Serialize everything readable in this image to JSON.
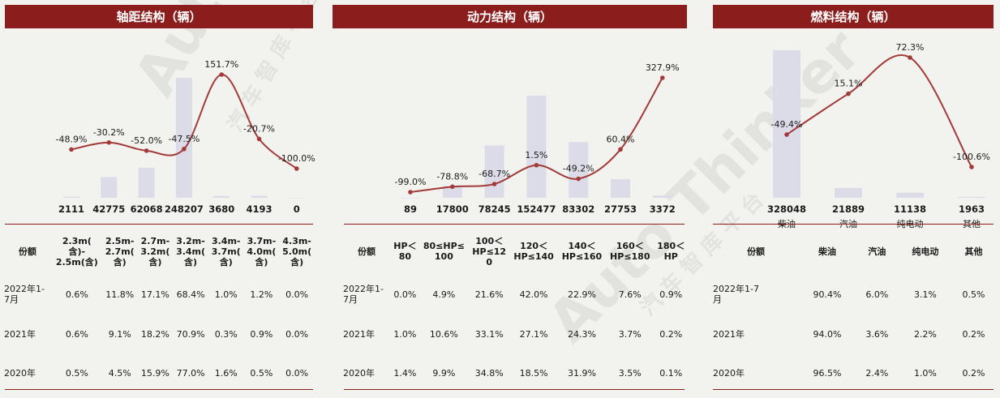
{
  "watermark": {
    "brand": "Auto Thinker",
    "cn1": "汽 车 智 库 平 台"
  },
  "colors": {
    "header": "#8c1d1d",
    "line": "#a33a3a",
    "bar": "#dcdce8"
  },
  "panels": [
    {
      "title": "轴距结构（辆）",
      "chart_data": {
        "type": "bar",
        "title": "轴距结构（辆）",
        "categories": [
          "2.3m(含)-2.5m(含)",
          "2.5m-2.7m(含)",
          "2.7m-3.2m(含)",
          "3.2m-3.4m(含)",
          "3.4m-3.7m(含)",
          "3.7m-4.0m(含)",
          "4.3m-5.0m(含)"
        ],
        "values": [
          2111,
          42775,
          62068,
          248207,
          3680,
          4193,
          0
        ],
        "value_labels": [
          "2111",
          "42775",
          "62068",
          "248207",
          "3680",
          "4193",
          "0"
        ],
        "growth": [
          -48.9,
          -30.2,
          -52.0,
          -47.5,
          151.7,
          -20.7,
          -100.0
        ],
        "growth_labels": [
          "-48.9%",
          "-30.2%",
          "-52.0%",
          "-47.5%",
          "151.7%",
          "-20.7%",
          "-100.0%"
        ]
      },
      "table": {
        "header": [
          "份额",
          "2.3m(\n含)-\n2.5m(含)",
          "2.5m-\n2.7m(\n含)",
          "2.7m-\n3.2m(\n含)",
          "3.2m-\n3.4m(\n含)",
          "3.4m-\n3.7m(\n含)",
          "3.7m-\n4.0m(\n含)",
          "4.3m-\n5.0m(\n含)"
        ],
        "rows": [
          [
            "2022年1-\n7月",
            "0.6%",
            "11.8%",
            "17.1%",
            "68.4%",
            "1.0%",
            "1.2%",
            "0.0%"
          ],
          [
            "2021年",
            "0.6%",
            "9.1%",
            "18.2%",
            "70.9%",
            "0.3%",
            "0.9%",
            "0.0%"
          ],
          [
            "2020年",
            "0.5%",
            "4.5%",
            "15.9%",
            "77.0%",
            "1.6%",
            "0.5%",
            "0.0%"
          ]
        ]
      }
    },
    {
      "title": "动力结构（辆）",
      "chart_data": {
        "type": "bar",
        "title": "动力结构（辆）",
        "categories": [
          "HP＜80",
          "80≤HP≤100",
          "100＜HP≤120",
          "120＜HP≤140",
          "140＜HP≤160",
          "160＜HP≤180",
          "180＜HP"
        ],
        "values": [
          89,
          17800,
          78245,
          152477,
          83302,
          27753,
          3372
        ],
        "value_labels": [
          "89",
          "17800",
          "78245",
          "152477",
          "83302",
          "27753",
          "3372"
        ],
        "growth": [
          -99.0,
          -78.8,
          -68.7,
          1.5,
          -49.2,
          60.4,
          327.9
        ],
        "growth_labels": [
          "-99.0%",
          "-78.8%",
          "-68.7%",
          "1.5%",
          "-49.2%",
          "60.4%",
          "327.9%"
        ]
      },
      "table": {
        "header": [
          "份额",
          "HP＜\n80",
          "80≤HP≤\n100",
          "100＜\nHP≤12\n0",
          "120＜\nHP≤140",
          "140＜\nHP≤160",
          "160＜\nHP≤180",
          "180＜\nHP"
        ],
        "rows": [
          [
            "2022年1-\n7月",
            "0.0%",
            "4.9%",
            "21.6%",
            "42.0%",
            "22.9%",
            "7.6%",
            "0.9%"
          ],
          [
            "2021年",
            "1.0%",
            "10.6%",
            "33.1%",
            "27.1%",
            "24.3%",
            "3.7%",
            "0.2%"
          ],
          [
            "2020年",
            "1.4%",
            "9.9%",
            "34.8%",
            "18.5%",
            "31.9%",
            "3.5%",
            "0.1%"
          ]
        ]
      }
    },
    {
      "title": "燃料结构（辆）",
      "chart_data": {
        "type": "bar",
        "title": "燃料结构（辆）",
        "categories": [
          "柴油",
          "汽油",
          "纯电动",
          "其他"
        ],
        "values": [
          328048,
          21889,
          11138,
          1963
        ],
        "value_labels": [
          "328048",
          "21889",
          "11138",
          "1963"
        ],
        "growth": [
          -49.4,
          15.1,
          72.3,
          -100.6
        ],
        "growth_labels": [
          "-49.4%",
          "15.1%",
          "72.3%",
          "-100.6%"
        ]
      },
      "table": {
        "header": [
          "份额",
          "柴油",
          "汽油",
          "纯电动",
          "其他"
        ],
        "rows": [
          [
            "2022年1-7\n月",
            "90.4%",
            "6.0%",
            "3.1%",
            "0.5%"
          ],
          [
            "2021年",
            "94.0%",
            "3.6%",
            "2.2%",
            "0.2%"
          ],
          [
            "2020年",
            "96.5%",
            "2.4%",
            "1.0%",
            "0.2%"
          ]
        ]
      }
    }
  ]
}
